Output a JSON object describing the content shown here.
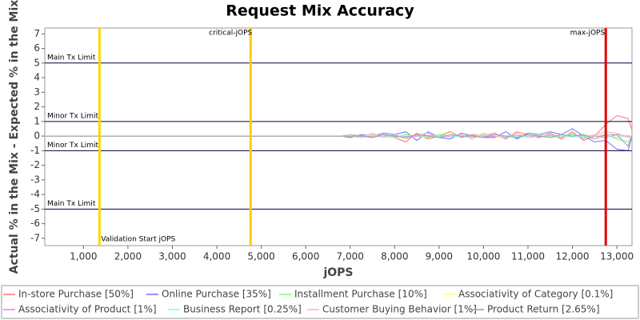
{
  "chart_data": {
    "type": "line",
    "title": "Request Mix Accuracy",
    "x_label": "jOPS",
    "y_label": "Actual % in the Mix - Expected % in the Mix",
    "xlim": [
      130,
      13340
    ],
    "ylim": [
      -7.5,
      7.4
    ],
    "xticks": [
      {
        "value": 1000,
        "label": "1,000"
      },
      {
        "value": 2000,
        "label": "2,000"
      },
      {
        "value": 3000,
        "label": "3,000"
      },
      {
        "value": 4000,
        "label": "4,000"
      },
      {
        "value": 5000,
        "label": "5,000"
      },
      {
        "value": 6000,
        "label": "6,000"
      },
      {
        "value": 7000,
        "label": "7,000"
      },
      {
        "value": 8000,
        "label": "8,000"
      },
      {
        "value": 9000,
        "label": "9,000"
      },
      {
        "value": 10000,
        "label": "10,000"
      },
      {
        "value": 11000,
        "label": "11,000"
      },
      {
        "value": 12000,
        "label": "12,000"
      },
      {
        "value": 13000,
        "label": "13,000"
      }
    ],
    "yticks": [
      -7,
      -6,
      -5,
      -4,
      -3,
      -2,
      -1,
      0,
      1,
      2,
      3,
      4,
      5,
      6,
      7
    ],
    "grid": false,
    "limits": [
      {
        "value": 5,
        "label": "Main Tx Limit"
      },
      {
        "value": 1,
        "label": "Minor Tx Limit"
      },
      {
        "value": -1,
        "label": "Minor Tx Limit"
      },
      {
        "value": -5,
        "label": "Main Tx Limit"
      }
    ],
    "markers": [
      {
        "value": 1360,
        "label": "Validation Start jOPS",
        "color": "#ffd700"
      },
      {
        "value": 4760,
        "label": "critical-jOPS",
        "color": "#ffcc00"
      },
      {
        "value": 12750,
        "label": "max-jOPS",
        "color": "#e00000"
      }
    ],
    "x": [
      150,
      2000,
      4000,
      6000,
      6800,
      7000,
      7250,
      7500,
      7750,
      8000,
      8250,
      8500,
      8750,
      9000,
      9250,
      9500,
      9750,
      10000,
      10250,
      10500,
      10750,
      11000,
      11250,
      11500,
      11750,
      12000,
      12250,
      12500,
      12750,
      13000,
      13250,
      13340
    ],
    "series": [
      {
        "name": "In-store Purchase [50%]",
        "color": "#ff7070",
        "values": [
          0,
          0,
          0,
          0,
          0,
          0.1,
          0,
          -0.1,
          0.1,
          -0.1,
          -0.4,
          0.2,
          -0.2,
          0,
          0.3,
          -0.1,
          0.1,
          0,
          0.2,
          -0.2,
          0.3,
          0.1,
          -0.1,
          0.2,
          -0.2,
          0.3,
          -0.3,
          0,
          0.8,
          1.4,
          1.2,
          0.4
        ]
      },
      {
        "name": "Online Purchase [35%]",
        "color": "#7070ff",
        "values": [
          0,
          0,
          0,
          0,
          0,
          -0.1,
          0.1,
          0,
          0.2,
          0.1,
          0.3,
          -0.3,
          0.3,
          -0.1,
          -0.2,
          0.2,
          0,
          -0.1,
          -0.1,
          0.3,
          -0.2,
          0.2,
          0.1,
          0.3,
          0.1,
          0.5,
          0,
          -0.4,
          -0.3,
          -0.9,
          -1.0,
          0
        ]
      },
      {
        "name": "Installment Purchase [10%]",
        "color": "#70ff70",
        "values": [
          0,
          0,
          0,
          0,
          0,
          0,
          -0.1,
          0.1,
          0,
          -0.1,
          0.1,
          0,
          -0.1,
          0.1,
          0,
          0,
          -0.1,
          0.1,
          0,
          0,
          -0.1,
          0,
          0.1,
          -0.1,
          0,
          0.1,
          -0.1,
          0,
          0.1,
          -0.2,
          -0.4,
          0
        ]
      },
      {
        "name": "Associativity of Category [0.1%]",
        "color": "#ffff70",
        "values": [
          0,
          0,
          0,
          0,
          0,
          0,
          0,
          0,
          0,
          0,
          0,
          0,
          0,
          0,
          0,
          0,
          0,
          0,
          0,
          0,
          0,
          0,
          0,
          0,
          0,
          0,
          0,
          0,
          0,
          0,
          0,
          0
        ]
      },
      {
        "name": "Associativity of Product [1%]",
        "color": "#ff70ff",
        "values": [
          0,
          0,
          0,
          0,
          0,
          0,
          0.05,
          -0.05,
          0,
          0.05,
          -0.05,
          0,
          0.05,
          0,
          -0.05,
          0,
          0.05,
          0,
          -0.05,
          0,
          0.05,
          0,
          -0.05,
          0.05,
          0,
          -0.05,
          0.05,
          0,
          -0.1,
          0.1,
          0,
          0
        ]
      },
      {
        "name": "Business Report [0.25%]",
        "color": "#70ffff",
        "values": [
          0,
          0,
          0,
          0,
          0,
          0,
          0,
          0.05,
          0,
          -0.05,
          0,
          0.05,
          0,
          0,
          -0.05,
          0,
          0,
          0.05,
          0,
          -0.05,
          0,
          0,
          0.05,
          0,
          0,
          -0.05,
          0,
          0.05,
          0,
          -0.1,
          0.05,
          0
        ]
      },
      {
        "name": "Customer Buying Behavior [1%]",
        "color": "#ffb0b0",
        "values": [
          0,
          0,
          0,
          0,
          0,
          0.1,
          -0.1,
          0.2,
          -0.1,
          0.1,
          -0.2,
          0.1,
          0.2,
          -0.1,
          0,
          0.1,
          -0.2,
          0.2,
          0,
          -0.1,
          0.2,
          -0.1,
          0,
          0.1,
          -0.1,
          0.2,
          -0.2,
          0.1,
          0.3,
          0.2,
          -0.1,
          0
        ]
      },
      {
        "name": "Product Return [2.65%]",
        "color": "#a0a0a0",
        "values": [
          0,
          0,
          0,
          0,
          0,
          0,
          0,
          -0.1,
          0.1,
          0,
          -0.1,
          0.1,
          0,
          -0.1,
          0.1,
          0,
          0,
          -0.1,
          0.1,
          0,
          -0.1,
          0.1,
          0,
          -0.1,
          0.1,
          0,
          0.1,
          -0.2,
          0.1,
          0.1,
          -0.7,
          0
        ]
      }
    ]
  }
}
